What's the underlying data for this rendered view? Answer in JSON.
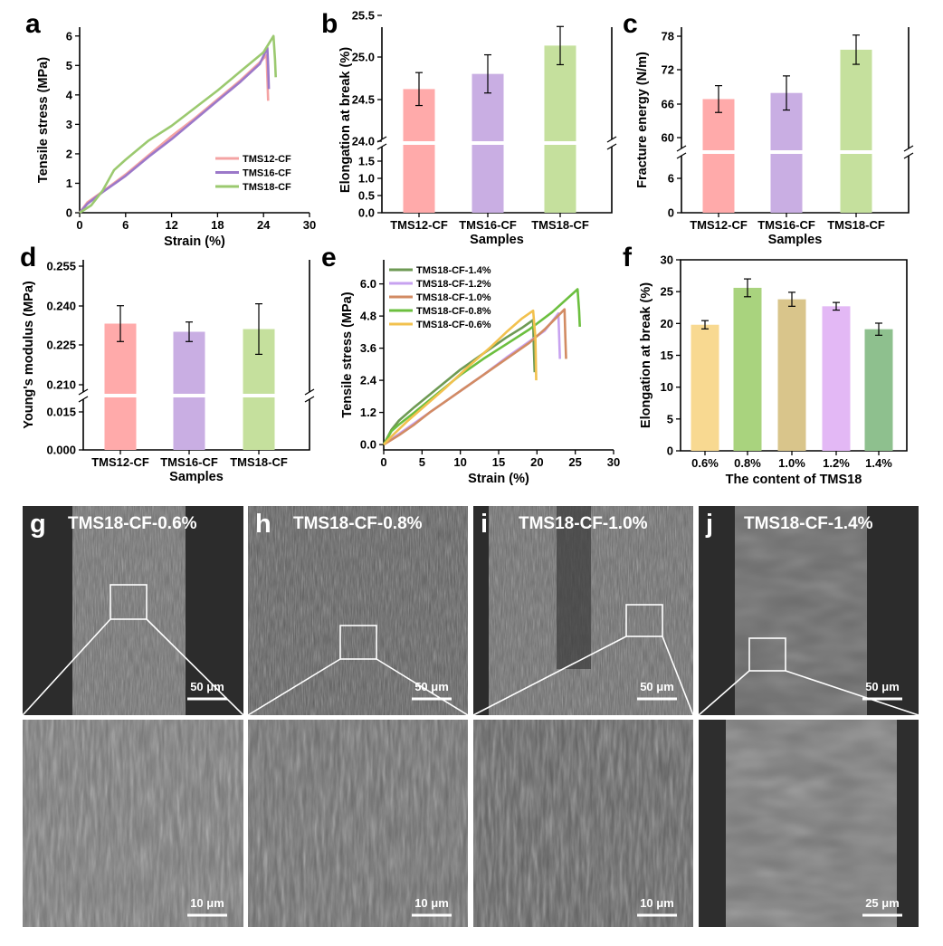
{
  "chart_data": [
    {
      "panel": "a",
      "type": "line",
      "xlabel": "Strain (%)",
      "ylabel": "Tensile stress (MPa)",
      "xlim": [
        0,
        30
      ],
      "ylim": [
        0,
        6.3
      ],
      "xticks": [
        0,
        6,
        12,
        18,
        24,
        30
      ],
      "yticks": [
        0,
        1,
        2,
        3,
        4,
        5,
        6
      ],
      "legend_position": "bottom-right",
      "series": [
        {
          "name": "TMS12-CF",
          "color": "#F4A3A3",
          "x": [
            0,
            1,
            3,
            6,
            9,
            12,
            15,
            18,
            21,
            23.5,
            24.4,
            24.5,
            24.6
          ],
          "y": [
            0,
            0.35,
            0.72,
            1.3,
            1.95,
            2.6,
            3.2,
            3.85,
            4.5,
            5.1,
            5.35,
            4.6,
            3.8
          ]
        },
        {
          "name": "TMS16-CF",
          "color": "#9B78C9",
          "x": [
            0,
            1,
            3,
            6,
            9,
            12,
            15,
            18,
            21,
            23.5,
            24.5,
            24.6,
            24.7
          ],
          "y": [
            0,
            0.3,
            0.7,
            1.25,
            1.9,
            2.5,
            3.15,
            3.8,
            4.45,
            5.05,
            5.6,
            5.0,
            4.2
          ]
        },
        {
          "name": "TMS18-CF",
          "color": "#9BC96F",
          "x": [
            0,
            1.5,
            3,
            4.5,
            6,
            9,
            12,
            15,
            18,
            21,
            24,
            25.3,
            25.5,
            25.6
          ],
          "y": [
            0,
            0.25,
            0.75,
            1.45,
            1.8,
            2.45,
            2.95,
            3.55,
            4.15,
            4.8,
            5.45,
            6.0,
            5.2,
            4.6
          ]
        }
      ]
    },
    {
      "panel": "b",
      "type": "bar",
      "xlabel": "Samples",
      "ylabel": "Elongation at break (%)",
      "categories": [
        "TMS12-CF",
        "TMS16-CF",
        "TMS18-CF"
      ],
      "values": [
        24.76,
        24.99,
        25.42
      ],
      "errors": [
        0.25,
        0.29,
        0.29
      ],
      "colors": [
        "#FFAAAA",
        "#C9AEE3",
        "#C5E09D"
      ],
      "axis_break": true,
      "lower_yticks": [
        "0.0",
        "0.5",
        "1.0",
        "1.5"
      ],
      "upper_yticks": [
        "24.0",
        "24.5",
        "25.0",
        "25.5"
      ]
    },
    {
      "panel": "c",
      "type": "bar",
      "xlabel": "Samples",
      "ylabel": "Fracture energy (N/m)",
      "categories": [
        "TMS12-CF",
        "TMS16-CF",
        "TMS18-CF"
      ],
      "values": [
        68.2,
        69.2,
        76.3
      ],
      "errors": [
        2.2,
        2.8,
        2.4
      ],
      "colors": [
        "#FFAAAA",
        "#C9AEE3",
        "#C5E09D"
      ],
      "axis_break": true,
      "lower_yticks": [
        "0",
        "6"
      ],
      "upper_yticks": [
        "60",
        "66",
        "72",
        "78"
      ]
    },
    {
      "panel": "d",
      "type": "bar",
      "xlabel": "Samples",
      "ylabel": "Young's modulus (MPa)",
      "categories": [
        "TMS12-CF",
        "TMS16-CF",
        "TMS18-CF"
      ],
      "values": [
        0.234,
        0.231,
        0.232
      ],
      "errors": [
        0.0066,
        0.0036,
        0.0093
      ],
      "colors": [
        "#FFAAAA",
        "#C9AEE3",
        "#C5E09D"
      ],
      "axis_break": true,
      "lower_yticks": [
        "0.000",
        "0.015"
      ],
      "upper_yticks": [
        "0.210",
        "0.225",
        "0.240",
        "0.255"
      ]
    },
    {
      "panel": "e",
      "type": "line",
      "xlabel": "Strain (%)",
      "ylabel": "Tensile stress (MPa)",
      "xlim": [
        0,
        30
      ],
      "ylim": [
        -0.2,
        6.9
      ],
      "xticks": [
        0,
        5,
        10,
        15,
        20,
        25,
        30
      ],
      "yticks": [
        "0.0",
        "1.2",
        "2.4",
        "3.6",
        "4.8",
        "6.0"
      ],
      "legend_position": "top-left",
      "series": [
        {
          "name": "TMS18-CF-1.4%",
          "color": "#6E9A54",
          "x": [
            0,
            1,
            2,
            4,
            7,
            10,
            13,
            16,
            18,
            19.5,
            19.6,
            19.7
          ],
          "y": [
            0,
            0.55,
            0.9,
            1.4,
            2.1,
            2.8,
            3.4,
            4.0,
            4.35,
            4.65,
            3.6,
            2.7
          ]
        },
        {
          "name": "TMS18-CF-1.2%",
          "color": "#C7A2F0",
          "x": [
            0,
            2,
            4,
            6,
            8,
            10,
            13,
            16,
            19,
            21,
            22.8,
            22.9,
            23.0
          ],
          "y": [
            0,
            0.4,
            0.8,
            1.2,
            1.6,
            2.0,
            2.6,
            3.25,
            3.85,
            4.25,
            4.9,
            4.0,
            3.2
          ]
        },
        {
          "name": "TMS18-CF-1.0%",
          "color": "#D28B63",
          "x": [
            0,
            2,
            4,
            6,
            8,
            10,
            13,
            16,
            19,
            21,
            23.6,
            23.7,
            23.8
          ],
          "y": [
            0,
            0.35,
            0.75,
            1.2,
            1.6,
            2.0,
            2.6,
            3.2,
            3.8,
            4.3,
            5.05,
            4.0,
            3.2
          ]
        },
        {
          "name": "TMS18-CF-0.8%",
          "color": "#6CBF3F",
          "x": [
            0,
            1,
            2,
            4,
            7,
            10,
            13,
            16,
            19,
            22,
            25.3,
            25.5,
            25.6
          ],
          "y": [
            0,
            0.5,
            0.75,
            1.2,
            1.9,
            2.6,
            3.2,
            3.75,
            4.3,
            4.95,
            5.8,
            5.0,
            4.4
          ]
        },
        {
          "name": "TMS18-CF-0.6%",
          "color": "#F2C14E",
          "x": [
            0,
            1,
            3,
            5,
            8,
            11,
            14,
            16,
            18,
            19.5,
            19.8,
            19.9
          ],
          "y": [
            0,
            0.3,
            0.85,
            1.35,
            2.1,
            2.9,
            3.65,
            4.2,
            4.7,
            5.0,
            4.0,
            2.4
          ]
        }
      ]
    },
    {
      "panel": "f",
      "type": "bar",
      "xlabel": "The content of TMS18",
      "ylabel": "Elongation at break (%)",
      "categories": [
        "0.6%",
        "0.8%",
        "1.0%",
        "1.2%",
        "1.4%"
      ],
      "values": [
        19.8,
        25.6,
        23.8,
        22.7,
        19.1
      ],
      "errors": [
        0.65,
        1.4,
        1.1,
        0.6,
        0.95
      ],
      "colors": [
        "#F8D991",
        "#A9D37E",
        "#D9C58B",
        "#E3B8F5",
        "#8EC08E"
      ],
      "ylim": [
        0,
        30
      ],
      "yticks": [
        "0",
        "5",
        "10",
        "15",
        "20",
        "25",
        "30"
      ]
    }
  ],
  "panel_labels": [
    "a",
    "b",
    "c",
    "d",
    "e",
    "f",
    "g",
    "h",
    "i",
    "j"
  ],
  "sem_panels": [
    {
      "label": "g",
      "title": "TMS18-CF-0.6%",
      "scale_top": "50 μm",
      "scale_bottom": "10 μm"
    },
    {
      "label": "h",
      "title": "TMS18-CF-0.8%",
      "scale_top": "50 μm",
      "scale_bottom": "10 μm"
    },
    {
      "label": "i",
      "title": "TMS18-CF-1.0%",
      "scale_top": "50 μm",
      "scale_bottom": "10 μm"
    },
    {
      "label": "j",
      "title": "TMS18-CF-1.4%",
      "scale_top": "50 μm",
      "scale_bottom": "25 μm"
    }
  ]
}
